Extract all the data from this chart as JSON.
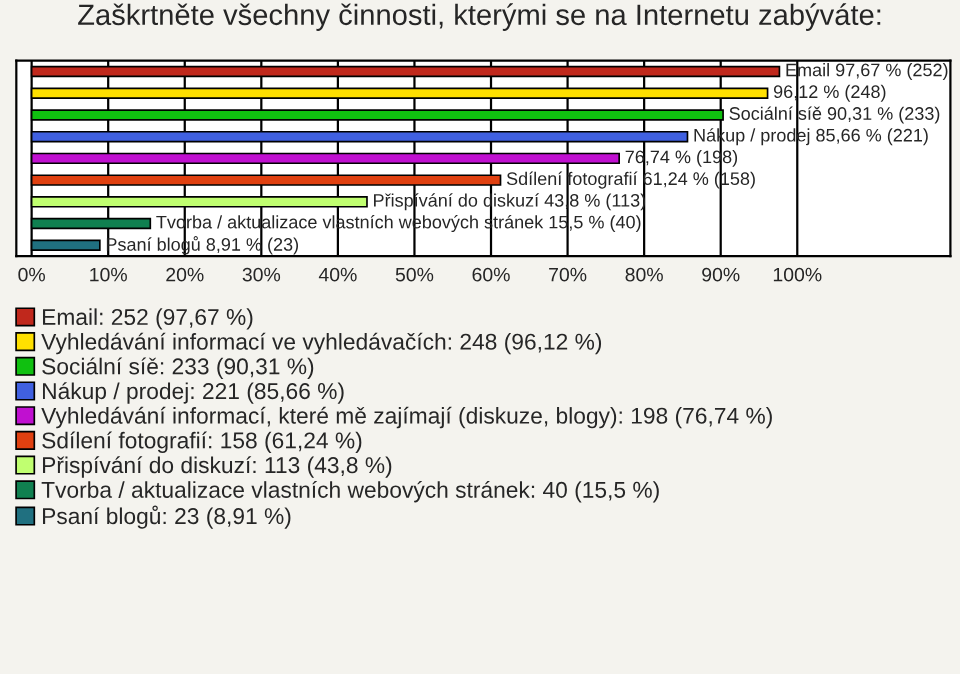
{
  "chart_data": {
    "type": "bar",
    "orientation": "horizontal",
    "title": "Zaškrtněte všechny činnosti, kterými se na Internetu zabýváte:",
    "categories": [
      null,
      null,
      null,
      null,
      null,
      null,
      null,
      null,
      null
    ],
    "series": [
      {
        "name": "Email: 252 (97,67 %)",
        "color": "#c0281c",
        "values": [
          97.67,
          null,
          null,
          null,
          null,
          null,
          null,
          null,
          null
        ]
      },
      {
        "name": "Vyhledávání informací ve vyhledávačích: 248 (96,12 %)",
        "color": "#ffe000",
        "values": [
          null,
          96.12,
          null,
          null,
          null,
          null,
          null,
          null,
          null
        ]
      },
      {
        "name": "Sociální síě: 233 (90,31 %)",
        "color": "#10c010",
        "values": [
          null,
          null,
          90.31,
          null,
          null,
          null,
          null,
          null,
          null
        ]
      },
      {
        "name": "Nákup / prodej: 221 (85,66 %)",
        "color": "#4060e0",
        "values": [
          null,
          null,
          null,
          85.66,
          null,
          null,
          null,
          null,
          null
        ]
      },
      {
        "name": "Vyhledávání informací, které mě zajímají (diskuze, blogy): 198 (76,74 %)",
        "color": "#c010d0",
        "values": [
          null,
          null,
          null,
          null,
          76.74,
          null,
          null,
          null,
          null
        ]
      },
      {
        "name": "Sdílení fotografií: 158 (61,24 %)",
        "color": "#e04010",
        "values": [
          null,
          null,
          null,
          null,
          null,
          61.24,
          null,
          null,
          null
        ]
      },
      {
        "name": "Přispívání do diskuzí: 113 (43,8 %)",
        "color": "#c0ff70",
        "values": [
          null,
          null,
          null,
          null,
          null,
          null,
          43.8,
          null,
          null
        ]
      },
      {
        "name": "Tvorba / aktualizace vlastních webových stránek: 40 (15,5 %)",
        "color": "#108050",
        "values": [
          null,
          null,
          null,
          null,
          null,
          null,
          null,
          15.5,
          null
        ]
      },
      {
        "name": "Psaní blogů: 23 (8,91 %)",
        "color": "#207080",
        "values": [
          null,
          null,
          null,
          null,
          null,
          null,
          null,
          null,
          8.91
        ]
      }
    ],
    "value_labels": [
      "Email 97,67 % (252)",
      "96,12 % (248)",
      "Sociální síě 90,31 % (233)",
      "Nákup / prodej 85,66 % (221)",
      "76,74 % (198)",
      "Sdílení fotografií 61,24 % (158)",
      "Přispívání do diskuzí 43,8 % (113)",
      "Tvorba / aktualizace vlastních webových stránek 15,5 % (40)",
      "Psaní blogů 8,91 % (23)"
    ],
    "xlim": [
      -2,
      120
    ],
    "xticks": [
      {
        "value": 0,
        "label": "0%"
      },
      {
        "value": 10,
        "label": "10%"
      },
      {
        "value": 20,
        "label": "20%"
      },
      {
        "value": 30,
        "label": "30%"
      },
      {
        "value": 40,
        "label": "40%"
      },
      {
        "value": 50,
        "label": "50%"
      },
      {
        "value": 60,
        "label": "60%"
      },
      {
        "value": 70,
        "label": "70%"
      },
      {
        "value": 80,
        "label": "80%"
      },
      {
        "value": 90,
        "label": "90%"
      },
      {
        "value": 100,
        "label": "100%"
      }
    ],
    "grid": "x",
    "legend": "bottom",
    "tick_labels": "x"
  }
}
